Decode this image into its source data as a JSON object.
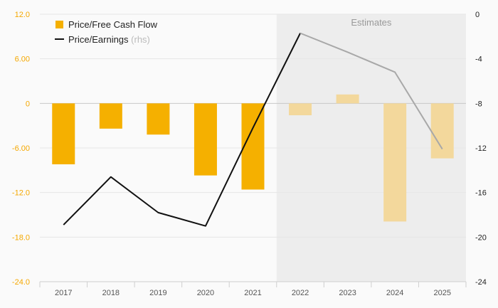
{
  "chart_data": {
    "type": "bar",
    "categories": [
      "2017",
      "2018",
      "2019",
      "2020",
      "2021",
      "2022",
      "2023",
      "2024",
      "2025"
    ],
    "estimates_label": "Estimates",
    "estimates_start_index": 5,
    "left_axis": {
      "ylim": [
        -24,
        12
      ],
      "ticks": [
        12,
        6,
        0,
        -6,
        -12,
        -18,
        -24
      ],
      "tick_labels": [
        "12.0",
        "6.00",
        "0",
        "-6.00",
        "-12.0",
        "-18.0",
        "-24.0"
      ],
      "color": "#f5a800"
    },
    "right_axis": {
      "ylim": [
        -24,
        0
      ],
      "ticks": [
        0,
        -4,
        -8,
        -12,
        -16,
        -20,
        -24
      ],
      "tick_labels": [
        "0",
        "-4",
        "-8",
        "-12",
        "-16",
        "-20",
        "-24"
      ]
    },
    "series": [
      {
        "name": "Price/Free Cash Flow",
        "type": "bar",
        "axis": "left",
        "values": [
          -8.2,
          -3.4,
          -4.2,
          -9.7,
          -11.6,
          -1.6,
          1.2,
          -15.9,
          -7.4
        ],
        "color": "#f5b000",
        "estimate_color": "#f3d89c"
      },
      {
        "name": "Price/Earnings",
        "suffix": "(rhs)",
        "type": "line",
        "axis": "right",
        "values": [
          -18.9,
          -14.6,
          -17.8,
          -19.0,
          -10.2,
          -1.7,
          -3.4,
          -5.2,
          -12.1
        ],
        "color": "#111111",
        "estimate_color": "#a8a8a8"
      }
    ]
  }
}
